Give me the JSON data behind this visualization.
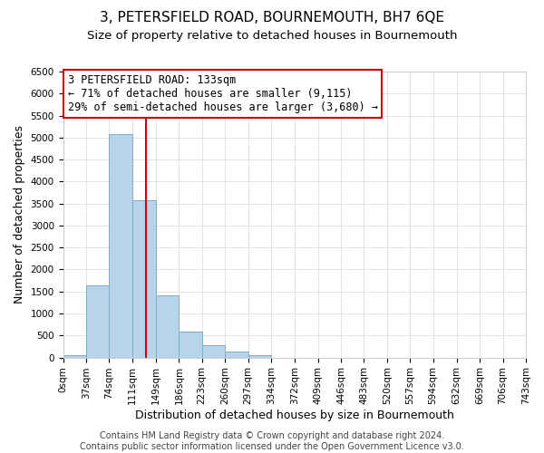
{
  "title": "3, PETERSFIELD ROAD, BOURNEMOUTH, BH7 6QE",
  "subtitle": "Size of property relative to detached houses in Bournemouth",
  "xlabel": "Distribution of detached houses by size in Bournemouth",
  "ylabel": "Number of detached properties",
  "footer_lines": [
    "Contains HM Land Registry data © Crown copyright and database right 2024.",
    "Contains public sector information licensed under the Open Government Licence v3.0."
  ],
  "bin_edges": [
    0,
    37,
    74,
    111,
    149,
    186,
    223,
    260,
    297,
    334,
    372,
    409,
    446,
    483,
    520,
    557,
    594,
    632,
    669,
    706,
    743
  ],
  "bin_counts": [
    60,
    1630,
    5080,
    3580,
    1420,
    580,
    290,
    140,
    50,
    0,
    0,
    0,
    0,
    0,
    0,
    0,
    0,
    0,
    0,
    0
  ],
  "bar_color": "#b8d4e8",
  "bar_edgecolor": "#7aaec8",
  "property_size": 133,
  "property_line_color": "#cc0000",
  "annotation_title": "3 PETERSFIELD ROAD: 133sqm",
  "annotation_line1": "← 71% of detached houses are smaller (9,115)",
  "annotation_line2": "29% of semi-detached houses are larger (3,680) →",
  "annotation_box_edgecolor": "#cc0000",
  "ylim": [
    0,
    6500
  ],
  "xlim_left": 0,
  "xlim_right": 743,
  "grid_color": "#d8d8d8",
  "title_fontsize": 11,
  "subtitle_fontsize": 9.5,
  "tick_label_fontsize": 7.5,
  "axis_label_fontsize": 9,
  "annotation_fontsize": 8.5,
  "footer_fontsize": 7
}
